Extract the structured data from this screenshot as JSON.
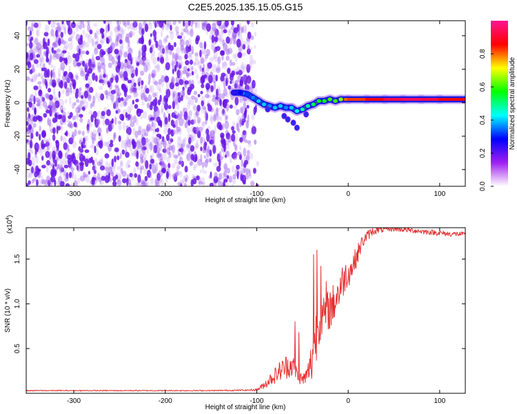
{
  "title": "C2E5.2025.135.15.05.G15",
  "chart_data": [
    {
      "type": "heatmap",
      "xlabel": "Height of straight line (km)",
      "ylabel": "Frequency (Hz)",
      "xlim": [
        -352,
        128
      ],
      "ylim": [
        -50,
        49
      ],
      "x_ticks": [
        -300,
        -200,
        -100,
        0,
        100
      ],
      "y_ticks": [
        -40,
        -20,
        0,
        20,
        40
      ],
      "x_tick_labels": [
        "-300",
        "-200",
        "-100",
        "0",
        "100"
      ],
      "y_tick_labels": [
        "-40",
        "-20",
        "0",
        "20",
        "40"
      ],
      "noise_region": {
        "x_range": [
          -352,
          -108
        ],
        "y_range": [
          -50,
          49
        ],
        "color": "#7b1fe8"
      },
      "ridge": [
        {
          "x": -125,
          "y": 6,
          "amp": 0.3
        },
        {
          "x": -118,
          "y": 6,
          "amp": 0.35
        },
        {
          "x": -110,
          "y": 5,
          "amp": 0.4
        },
        {
          "x": -104,
          "y": 3,
          "amp": 0.45
        },
        {
          "x": -98,
          "y": 1,
          "amp": 0.5
        },
        {
          "x": -92,
          "y": -1,
          "amp": 0.5
        },
        {
          "x": -86,
          "y": -2,
          "amp": 0.45
        },
        {
          "x": -80,
          "y": -3,
          "amp": 0.5
        },
        {
          "x": -74,
          "y": -2,
          "amp": 0.5
        },
        {
          "x": -68,
          "y": -3,
          "amp": 0.45
        },
        {
          "x": -62,
          "y": -3,
          "amp": 0.5
        },
        {
          "x": -56,
          "y": -5,
          "amp": 0.55
        },
        {
          "x": -50,
          "y": -4,
          "amp": 0.6
        },
        {
          "x": -44,
          "y": -2,
          "amp": 0.6
        },
        {
          "x": -38,
          "y": -1,
          "amp": 0.65
        },
        {
          "x": -32,
          "y": 1,
          "amp": 0.7
        },
        {
          "x": -26,
          "y": 1,
          "amp": 0.7
        },
        {
          "x": -20,
          "y": 2,
          "amp": 0.75
        },
        {
          "x": -14,
          "y": 1,
          "amp": 0.75
        },
        {
          "x": -8,
          "y": 2,
          "amp": 0.8
        },
        {
          "x": 0,
          "y": 2,
          "amp": 0.8
        },
        {
          "x": 20,
          "y": 2,
          "amp": 0.85
        },
        {
          "x": 40,
          "y": 2,
          "amp": 0.9
        },
        {
          "x": 60,
          "y": 2,
          "amp": 0.95
        },
        {
          "x": 80,
          "y": 2,
          "amp": 0.95
        },
        {
          "x": 100,
          "y": 2,
          "amp": 0.9
        },
        {
          "x": 128,
          "y": 2,
          "amp": 0.85
        }
      ],
      "ridge_outliers": [
        {
          "x": -70,
          "y": -8
        },
        {
          "x": -66,
          "y": -10
        },
        {
          "x": -60,
          "y": -12
        },
        {
          "x": -56,
          "y": -15
        },
        {
          "x": -88,
          "y": -4
        },
        {
          "x": -46,
          "y": -7
        }
      ],
      "colorbar": {
        "label": "Normalized spectral amplitude",
        "range": [
          0,
          1
        ],
        "ticks": [
          0.0,
          0.2,
          0.4,
          0.6,
          0.8
        ],
        "tick_labels": [
          "0.0",
          "0.2",
          "0.4",
          "0.6",
          "0.8"
        ],
        "stops": [
          "#ffffff",
          "#a020f0",
          "#0000ff",
          "#00ffff",
          "#00ff00",
          "#ffff00",
          "#ff0000",
          "#ff1493"
        ]
      }
    },
    {
      "type": "line",
      "xlabel": "Height of straight line (km)",
      "ylabel": "SNR (10 * v/v)",
      "y_multiplier_label": "(x10",
      "y_multiplier_exp": "4",
      "y_multiplier_close": ")",
      "xlim": [
        -352,
        128
      ],
      "ylim": [
        0,
        18500
      ],
      "x_ticks": [
        -300,
        -200,
        -100,
        0,
        100
      ],
      "y_ticks": [
        5000,
        10000,
        15000
      ],
      "x_tick_labels": [
        "-300",
        "-200",
        "-100",
        "0",
        "100"
      ],
      "y_tick_labels": [
        "0.5",
        "1.0",
        "1.5"
      ],
      "series": [
        {
          "color": "#e53030",
          "x": [
            -352,
            -300,
            -250,
            -200,
            -150,
            -110,
            -100,
            -95,
            -90,
            -85,
            -80,
            -75,
            -70,
            -65,
            -60,
            -55,
            -50,
            -45,
            -40,
            -36,
            -32,
            -28,
            -24,
            -20,
            -16,
            -12,
            -8,
            -4,
            0,
            4,
            8,
            12,
            16,
            20,
            25,
            30,
            40,
            50,
            60,
            70,
            80,
            90,
            100,
            110,
            120,
            128
          ],
          "y": [
            300,
            300,
            300,
            300,
            300,
            350,
            400,
            700,
            1100,
            1600,
            2000,
            2500,
            2800,
            3200,
            3000,
            2000,
            1500,
            2000,
            3500,
            6000,
            8000,
            8500,
            9000,
            9500,
            10000,
            11000,
            12000,
            13000,
            13500,
            14000,
            15000,
            16000,
            17000,
            17500,
            18000,
            18200,
            18300,
            18400,
            18300,
            18200,
            18100,
            18000,
            17900,
            17800,
            17800,
            17700
          ],
          "noise_amp": [
            60,
            60,
            60,
            60,
            60,
            80,
            150,
            300,
            500,
            700,
            900,
            1100,
            1300,
            1500,
            1200,
            800,
            700,
            1000,
            2500,
            3500,
            2500,
            2000,
            2200,
            2500,
            2300,
            2200,
            2200,
            1800,
            1600,
            1400,
            1200,
            1000,
            800,
            600,
            500,
            400,
            300,
            300,
            300,
            300,
            300,
            300,
            300,
            300,
            300,
            300
          ],
          "spikes": [
            {
              "x": -58,
              "y": 8000
            },
            {
              "x": -54,
              "y": 6800
            },
            {
              "x": -38,
              "y": 15500
            },
            {
              "x": -34,
              "y": 16000
            },
            {
              "x": -30,
              "y": 14200
            },
            {
              "x": -24,
              "y": 12500
            }
          ]
        }
      ]
    }
  ]
}
